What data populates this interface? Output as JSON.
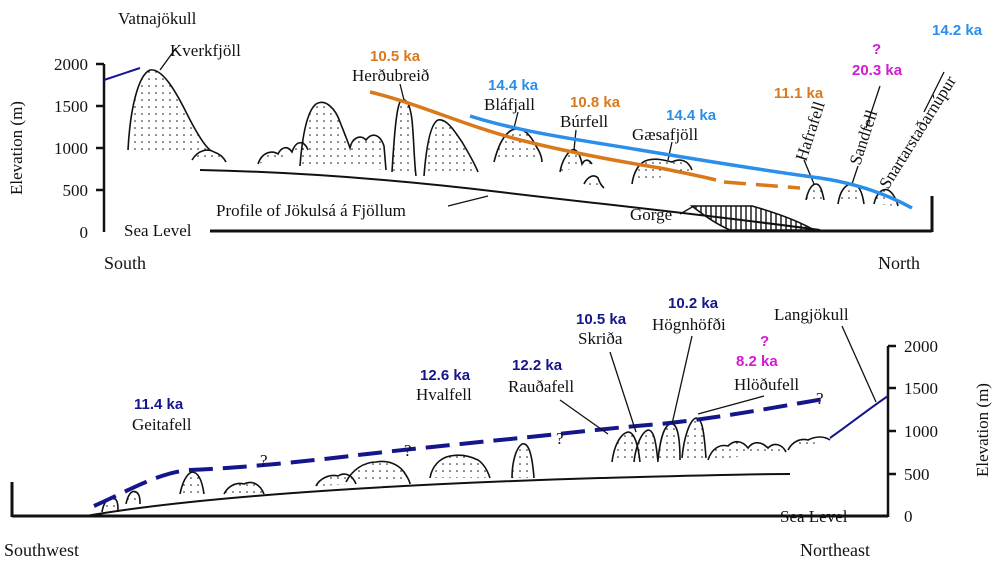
{
  "colors": {
    "orange": "#d9791c",
    "light_blue": "#2b8fea",
    "navy": "#16168c",
    "magenta": "#d21bd2",
    "black": "#111111"
  },
  "top": {
    "y_axis_label": "Elevation (m)",
    "ticks": [
      "2000",
      "1500",
      "1000",
      "500",
      "0"
    ],
    "sea_level": "Sea Level",
    "left_dir": "South",
    "right_dir": "North",
    "profile_label": "Profile of Jökulsá á Fjöllum",
    "gorge_label": "Gorge",
    "mountains": {
      "vatnajokull": "Vatnajökull",
      "kverkfjoll": "Kverkfjöll",
      "herdubreid": "Herðubreið",
      "blafjall": "Bláfjall",
      "burfell": "Búrfell",
      "gaesafjoll": "Gæsafjöll",
      "hafrafell": "Hafrafell",
      "sandfell": "Sandfell",
      "snartar": "Snartarstaðarnúpur"
    },
    "ages": {
      "herdubreid": "10.5 ka",
      "blafjall": "14.4 ka",
      "burfell": "10.8 ka",
      "gaesafjoll": "14.4 ka",
      "hafrafell": "11.1 ka",
      "sandfell_q": "?",
      "sandfell": "20.3 ka",
      "snartar": "14.2 ka"
    }
  },
  "bottom": {
    "y_axis_label": "Elevation (m)",
    "ticks": [
      "2000",
      "1500",
      "1000",
      "500",
      "0"
    ],
    "sea_level": "Sea Level",
    "left_dir": "Southwest",
    "right_dir": "Northeast",
    "question_mark": "?",
    "mountains": {
      "geitafell": "Geitafell",
      "hvalfell": "Hvalfell",
      "raudafell": "Rauðafell",
      "skrida": "Skriða",
      "hognhofdi": "Högnhöfði",
      "hlodufell": "Hlöðufell",
      "langjokull": "Langjökull"
    },
    "ages": {
      "geitafell": "11.4 ka",
      "hvalfell": "12.6 ka",
      "raudafell": "12.2 ka",
      "skrida": "10.5 ka",
      "hognhofdi": "10.2 ka",
      "hlodufell_q": "?",
      "hlodufell": "8.2 ka"
    }
  }
}
